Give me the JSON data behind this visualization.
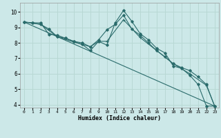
{
  "xlabel": "Humidex (Indice chaleur)",
  "xlim": [
    -0.5,
    23.5
  ],
  "ylim": [
    3.8,
    10.6
  ],
  "yticks": [
    4,
    5,
    6,
    7,
    8,
    9,
    10
  ],
  "xticks": [
    0,
    1,
    2,
    3,
    4,
    5,
    6,
    7,
    8,
    9,
    10,
    11,
    12,
    13,
    14,
    15,
    16,
    17,
    18,
    19,
    20,
    21,
    22,
    23
  ],
  "bg_color": "#cce8e8",
  "grid_color": "#b8d8d4",
  "line_color": "#2a6b6b",
  "line1_x": [
    0,
    1,
    2,
    3,
    4,
    5,
    6,
    7,
    8,
    9,
    10,
    11,
    12,
    13,
    14,
    15,
    16,
    17,
    18,
    19,
    20,
    21,
    22,
    23
  ],
  "line1_y": [
    9.35,
    9.3,
    9.2,
    8.9,
    8.4,
    8.3,
    8.1,
    8.0,
    7.75,
    8.2,
    8.85,
    9.2,
    9.8,
    8.9,
    8.5,
    8.0,
    7.5,
    7.1,
    6.65,
    6.4,
    6.2,
    5.8,
    5.3,
    3.9
  ],
  "line2_x": [
    0,
    1,
    2,
    3,
    4,
    5,
    6,
    7,
    8,
    9,
    10,
    11,
    12,
    13,
    14,
    15,
    16,
    17,
    18,
    19,
    20,
    21,
    22,
    23
  ],
  "line2_y": [
    9.35,
    9.3,
    9.3,
    8.55,
    8.5,
    8.3,
    8.1,
    7.9,
    7.5,
    8.1,
    7.85,
    9.3,
    10.1,
    9.4,
    8.6,
    8.2,
    7.65,
    7.35,
    6.5,
    6.35,
    5.9,
    5.3,
    3.9,
    3.9
  ],
  "line3_x": [
    0,
    2,
    4,
    6,
    8,
    9,
    10,
    12,
    14,
    16,
    18,
    20,
    22,
    23
  ],
  "line3_y": [
    9.35,
    9.2,
    8.4,
    8.05,
    7.75,
    8.1,
    8.1,
    9.5,
    8.35,
    7.5,
    6.65,
    6.0,
    5.25,
    3.9
  ],
  "line4_x": [
    0,
    23
  ],
  "line4_y": [
    9.35,
    3.9
  ]
}
